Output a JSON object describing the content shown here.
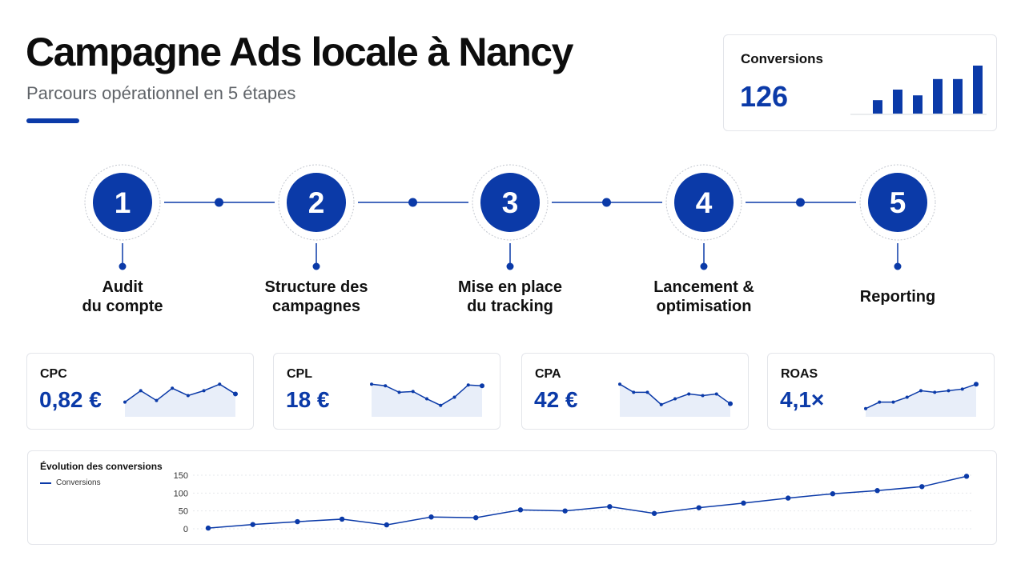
{
  "header": {
    "title": "Campagne Ads locale à Nancy",
    "subtitle": "Parcours opérationnel en 5 étapes"
  },
  "conversions_card": {
    "label": "Conversions",
    "value": "126",
    "bars": [
      0.28,
      0.5,
      0.38,
      0.72,
      0.72,
      1.0
    ]
  },
  "steps": [
    {
      "number": "1",
      "label_lines": [
        "Audit",
        "du compte"
      ]
    },
    {
      "number": "2",
      "label_lines": [
        "Structure des",
        "campagnes"
      ]
    },
    {
      "number": "3",
      "label_lines": [
        "Mise en place",
        "du tracking"
      ]
    },
    {
      "number": "4",
      "label_lines": [
        "Lancement &",
        "optimisation"
      ]
    },
    {
      "number": "5",
      "label_lines": [
        "Reporting"
      ]
    }
  ],
  "kpis": [
    {
      "name": "CPC",
      "value": "0,82 €",
      "trend": [
        0.78,
        0.92,
        0.8,
        0.95,
        0.86,
        0.92,
        1.0,
        0.88
      ]
    },
    {
      "name": "CPL",
      "value": "18 €",
      "trend": [
        1.0,
        0.98,
        0.9,
        0.91,
        0.82,
        0.74,
        0.84,
        0.99,
        0.98
      ]
    },
    {
      "name": "CPA",
      "value": "42 €",
      "trend": [
        1.0,
        0.9,
        0.9,
        0.75,
        0.82,
        0.88,
        0.86,
        0.88,
        0.76
      ]
    },
    {
      "name": "ROAS",
      "value": "4,1×",
      "trend": [
        0.7,
        0.78,
        0.78,
        0.84,
        0.92,
        0.9,
        0.92,
        0.94,
        1.0
      ]
    }
  ],
  "colors": {
    "accent": "#0b3aa8",
    "spark_fill": "#e8eef9",
    "card_border": "#e3e5ea"
  },
  "chart_data": {
    "type": "line",
    "title": "Évolution des conversions",
    "legend": "top-left",
    "series": [
      {
        "name": "Conversions",
        "values": [
          2,
          12,
          20,
          27,
          11,
          33,
          31,
          53,
          50,
          62,
          43,
          59,
          72,
          86,
          98,
          107,
          118,
          147
        ]
      }
    ],
    "x": [
      1,
      2,
      3,
      4,
      5,
      6,
      7,
      8,
      9,
      10,
      11,
      12,
      13,
      14,
      15,
      16,
      17,
      18
    ],
    "yticks": [
      0,
      50,
      100,
      150
    ],
    "ylim": [
      0,
      150
    ],
    "grid": true
  }
}
